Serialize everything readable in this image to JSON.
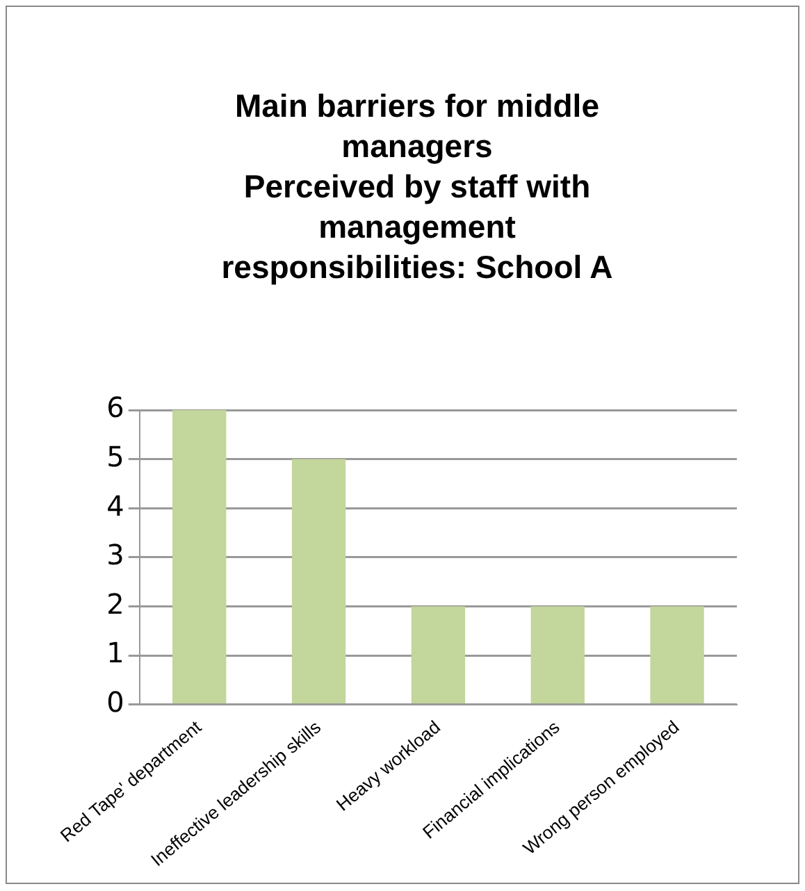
{
  "chart_data": {
    "type": "bar",
    "title": "Main barriers for middle managers\nPerceived by staff with management responsibilities: School A",
    "categories": [
      "Red Tape' department",
      "Ineffective leadership skills",
      "Heavy workload",
      "Financial implications",
      "Wrong person employed"
    ],
    "values": [
      6,
      5,
      2,
      2,
      2
    ],
    "color": "#c3d69b",
    "ylim": [
      0,
      6
    ],
    "yticks": [
      0,
      1,
      2,
      3,
      4,
      5,
      6
    ],
    "grid": "y",
    "legend": false
  }
}
